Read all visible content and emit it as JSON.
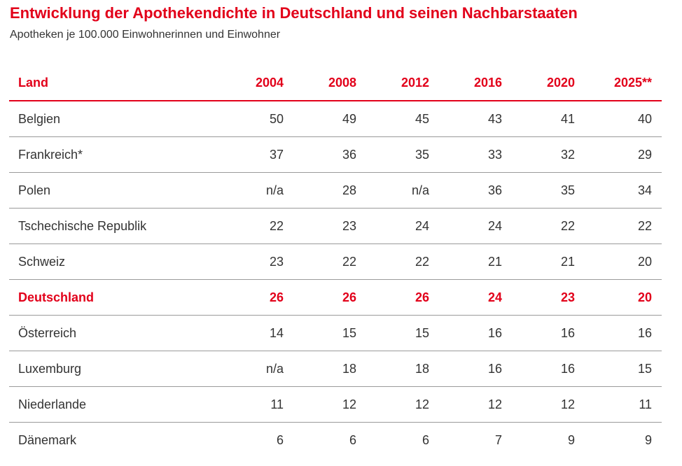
{
  "title": "Entwicklung der Apothekendichte in Deutschland und seinen Nachbarstaaten",
  "subtitle": "Apotheken je 100.000 Einwohnerinnen und Einwohner",
  "colors": {
    "accent": "#e2001a",
    "text": "#333333",
    "divider": "#9a9a9a"
  },
  "table": {
    "headers": [
      "Land",
      "2004",
      "2008",
      "2012",
      "2016",
      "2020",
      "2025**"
    ],
    "rows": [
      {
        "cells": [
          "Belgien",
          "50",
          "49",
          "45",
          "43",
          "41",
          "40"
        ]
      },
      {
        "cells": [
          "Frankreich*",
          "37",
          "36",
          "35",
          "33",
          "32",
          "29"
        ]
      },
      {
        "cells": [
          "Polen",
          "n/a",
          "28",
          "n/a",
          "36",
          "35",
          "34"
        ]
      },
      {
        "cells": [
          "Tschechische Republik",
          "22",
          "23",
          "24",
          "24",
          "22",
          "22"
        ]
      },
      {
        "cells": [
          "Schweiz",
          "23",
          "22",
          "22",
          "21",
          "21",
          "20"
        ]
      },
      {
        "cells": [
          "Deutschland",
          "26",
          "26",
          "26",
          "24",
          "23",
          "20"
        ],
        "highlight": true
      },
      {
        "cells": [
          "Österreich",
          "14",
          "15",
          "15",
          "16",
          "16",
          "16"
        ]
      },
      {
        "cells": [
          "Luxemburg",
          "n/a",
          "18",
          "18",
          "16",
          "16",
          "15"
        ]
      },
      {
        "cells": [
          "Niederlande",
          "11",
          "12",
          "12",
          "12",
          "12",
          "11"
        ]
      },
      {
        "cells": [
          "Dänemark",
          "6",
          "6",
          "6",
          "7",
          "9",
          "9"
        ]
      }
    ]
  }
}
